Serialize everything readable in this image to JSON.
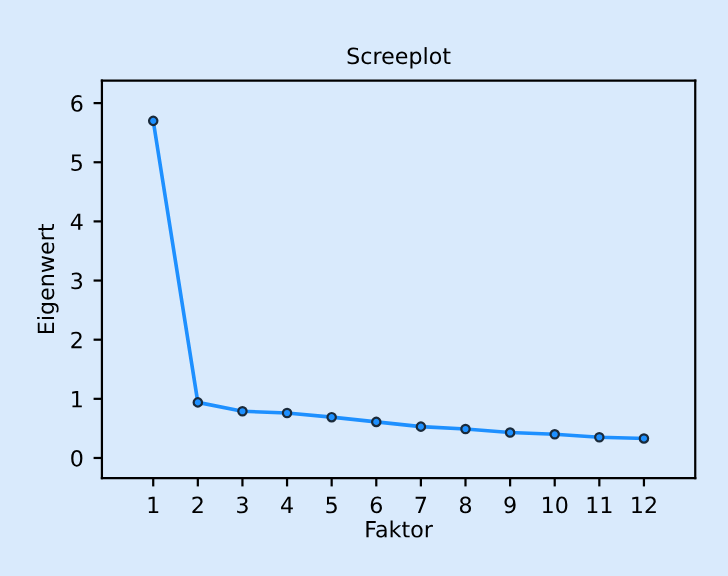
{
  "chart_data": {
    "type": "line",
    "title": "Screeplot",
    "xlabel": "Faktor",
    "ylabel": "Eigenwert",
    "x": [
      1,
      2,
      3,
      4,
      5,
      6,
      7,
      8,
      9,
      10,
      11,
      12
    ],
    "series": [
      {
        "color": "#1e90ff",
        "values": [
          5.7,
          0.94,
          0.79,
          0.76,
          0.69,
          0.61,
          0.53,
          0.49,
          0.43,
          0.4,
          0.35,
          0.33
        ]
      }
    ],
    "xlim": [
      -0.15,
      13.15
    ],
    "xticks": [
      1,
      2,
      3,
      4,
      5,
      6,
      7,
      8,
      9,
      10,
      11,
      12
    ],
    "ylim": [
      -0.34,
      6.38
    ],
    "yticks": [
      0,
      1,
      2,
      3,
      4,
      5,
      6
    ],
    "marker": "circle",
    "line_style": "solid",
    "grid": false,
    "legend": false
  }
}
